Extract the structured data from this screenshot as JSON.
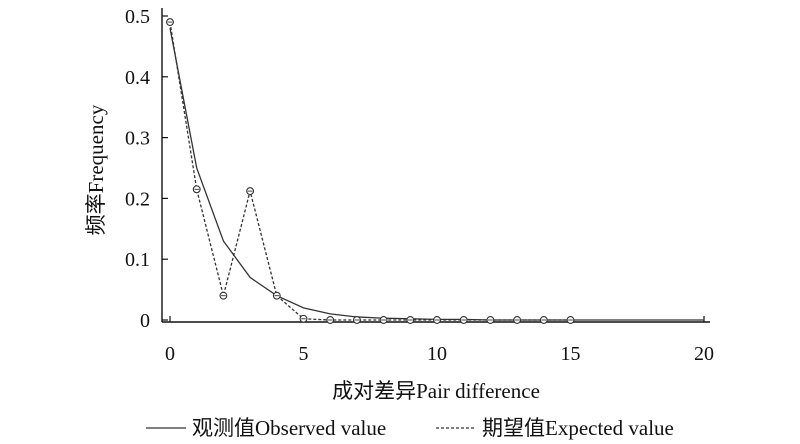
{
  "chart_data": {
    "type": "line",
    "title": "",
    "xlabel": "成对差异Pair difference",
    "ylabel": "频率Frequency",
    "xlim": [
      0,
      20
    ],
    "ylim": [
      0,
      0.5
    ],
    "xticks": [
      "0",
      "5",
      "10",
      "15",
      "20"
    ],
    "yticks": [
      "0",
      "0.1",
      "0.2",
      "0.3",
      "0.4",
      "0.5"
    ],
    "grid": false,
    "legend_position": "bottom",
    "series": [
      {
        "name": "观测值Observed value",
        "style": "solid",
        "color": "#333333",
        "x": [
          0,
          1,
          2,
          3,
          4,
          5,
          6,
          7,
          8,
          9,
          10,
          11,
          12,
          13,
          14,
          15,
          20
        ],
        "y": [
          0.48,
          0.25,
          0.13,
          0.07,
          0.04,
          0.02,
          0.01,
          0.005,
          0.003,
          0.002,
          0.001,
          0.001,
          0.0,
          0.0,
          0.0,
          0.0,
          0.0
        ]
      },
      {
        "name": "期望值Expected value",
        "style": "dashed",
        "markers": true,
        "color": "#333333",
        "x": [
          0,
          1,
          2,
          3,
          4,
          5,
          6,
          7,
          8,
          9,
          10,
          11,
          12,
          13,
          14,
          15
        ],
        "y": [
          0.49,
          0.215,
          0.04,
          0.212,
          0.04,
          0.002,
          0.0,
          0.0,
          0.0,
          0.0,
          0.0,
          0.0,
          0.0,
          0.0,
          0.0,
          0.0
        ]
      }
    ]
  }
}
